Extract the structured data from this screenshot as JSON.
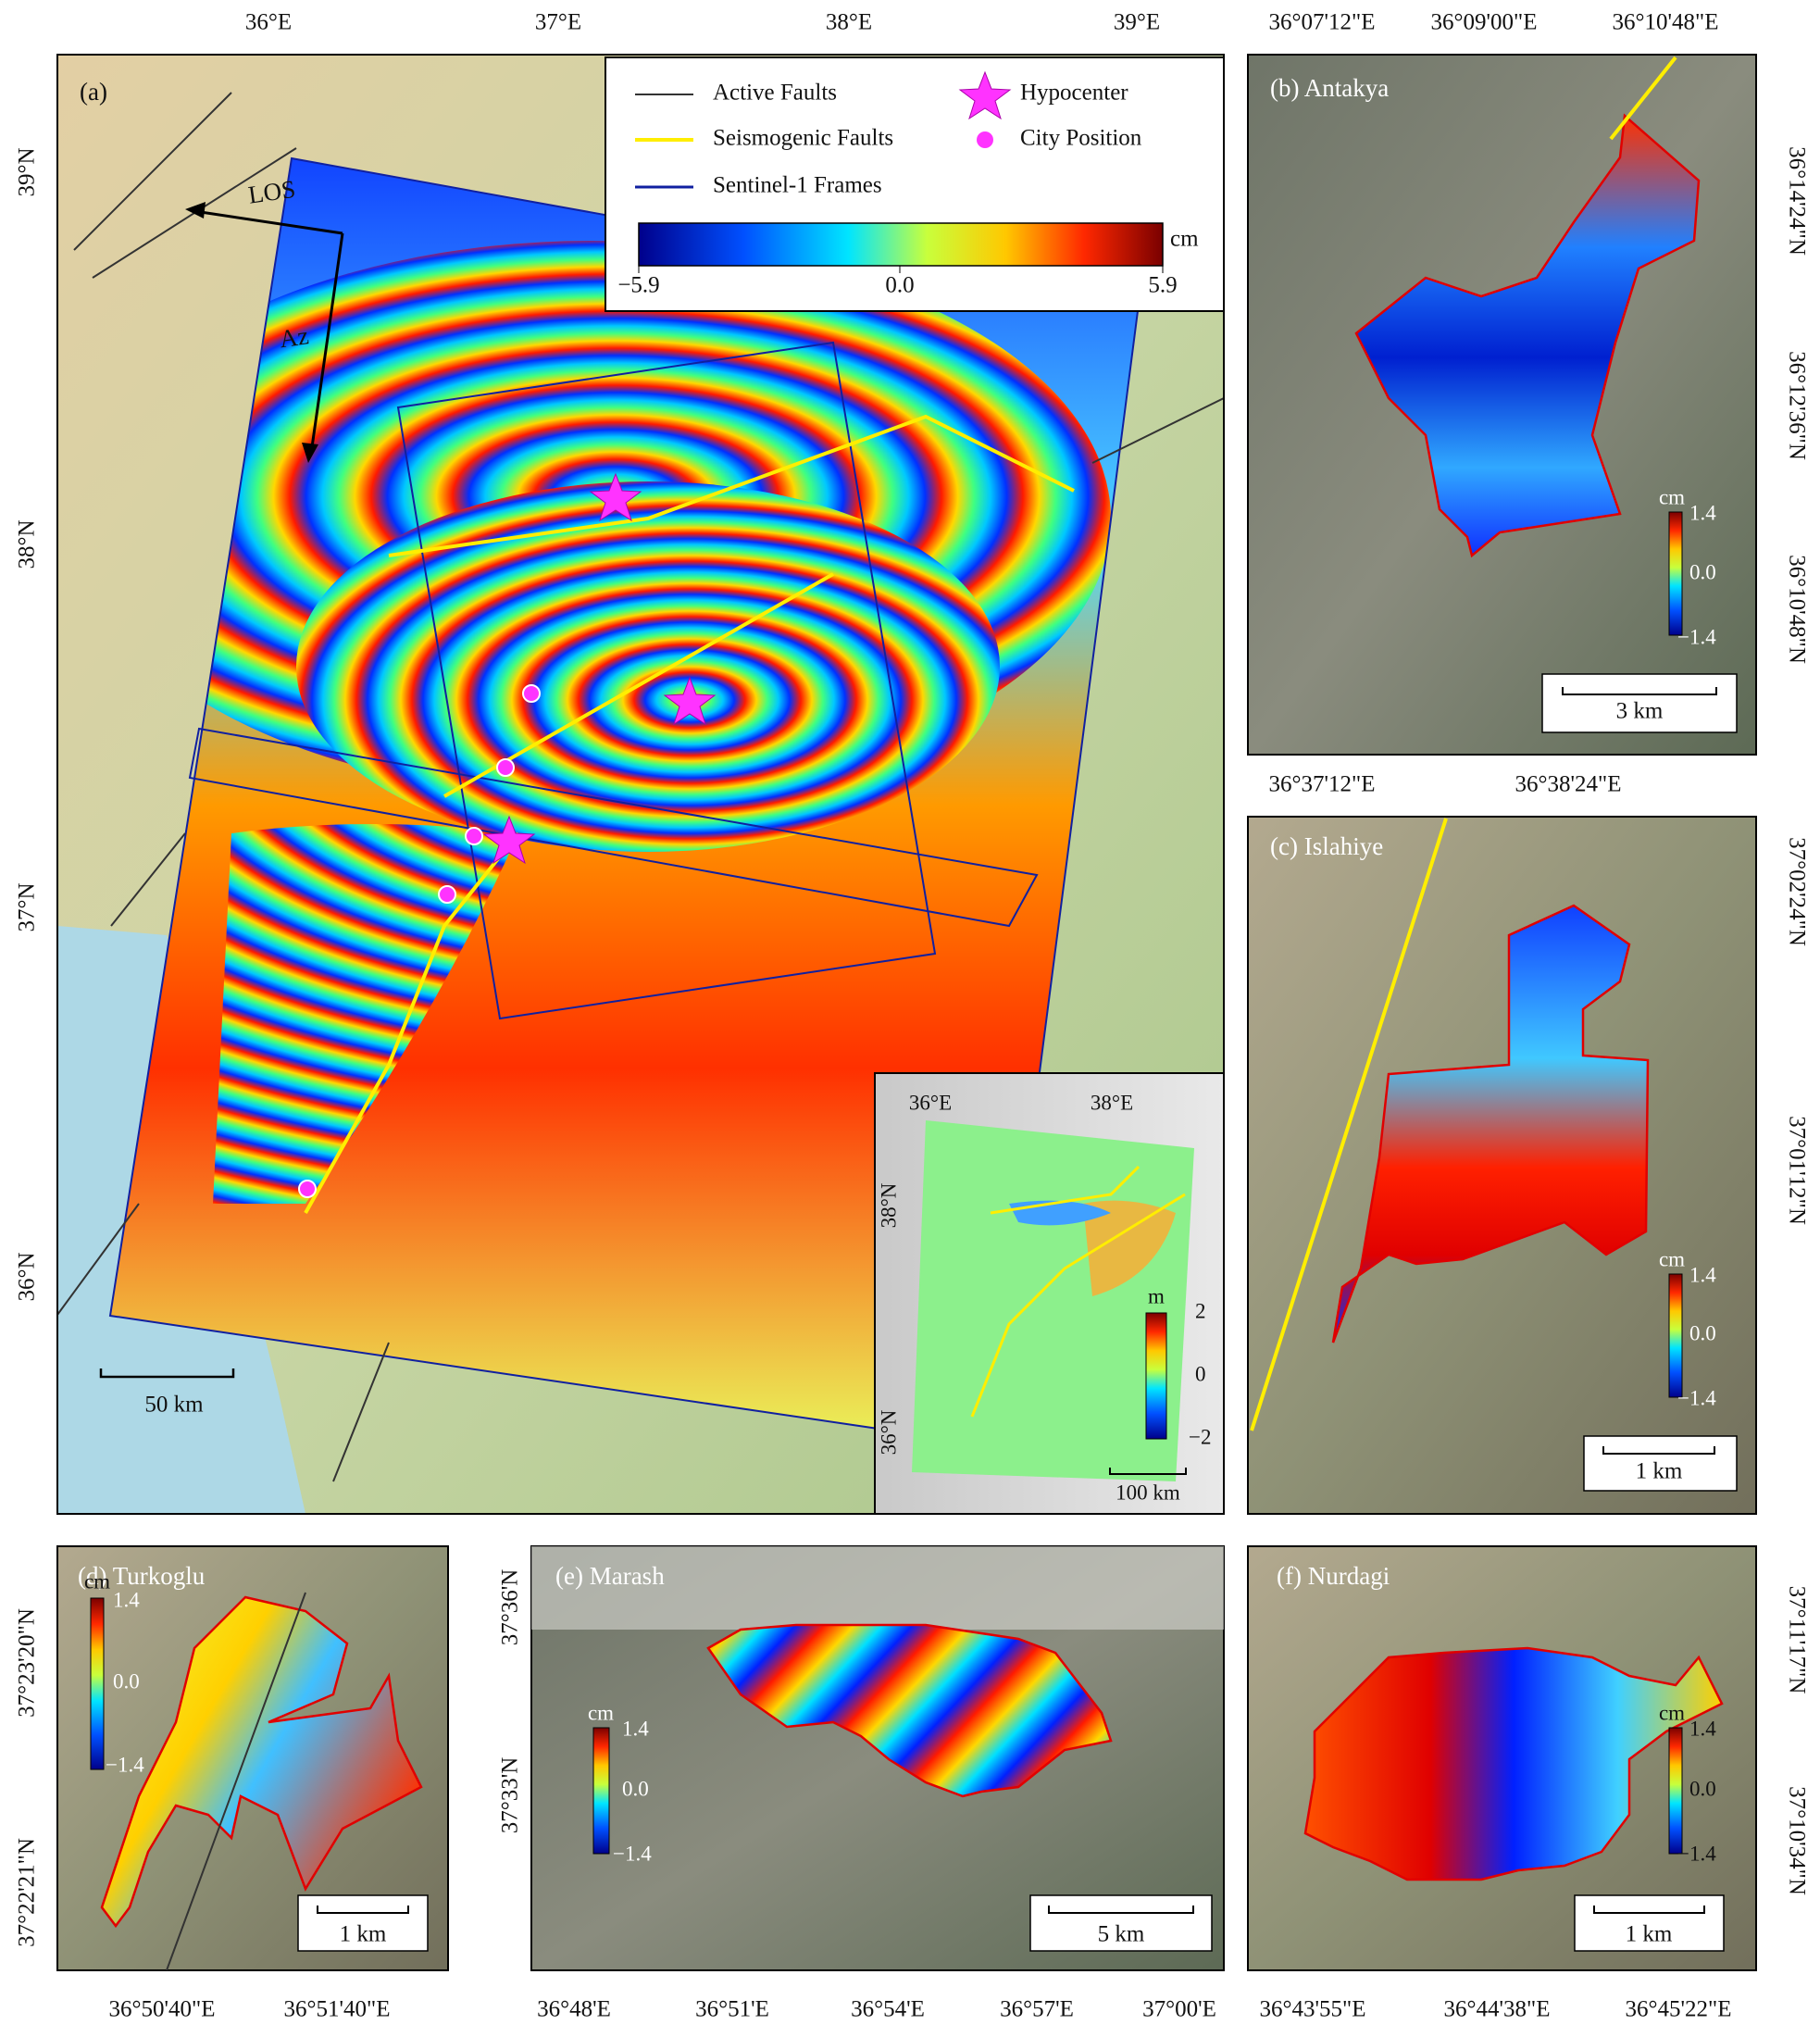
{
  "panel_a": {
    "label": "(a)",
    "lon_ticks": [
      "36°E",
      "37°E",
      "38°E",
      "39°E"
    ],
    "lat_ticks": [
      "39°N",
      "38°N",
      "37°N",
      "36°N"
    ],
    "legend": {
      "active_faults": "Active Faults",
      "seismogenic_faults": "Seismogenic Faults",
      "sentinel_frames": "Sentinel-1 Frames",
      "hypocenter": "Hypocenter",
      "city_position": "City Position"
    },
    "colorbar": {
      "unit": "cm",
      "ticks": [
        "−5.9",
        "0.0",
        "5.9"
      ]
    },
    "los": "LOS",
    "az": "Az",
    "scale_bar": "50 km",
    "inset": {
      "lon_ticks": [
        "36°E",
        "38°E"
      ],
      "lat_ticks": [
        "38°N",
        "36°N"
      ],
      "colorbar": {
        "unit": "m",
        "ticks": [
          "2",
          "0",
          "−2"
        ]
      },
      "scale_bar": "100 km"
    }
  },
  "panel_b": {
    "label": "(b) Antakya",
    "lon_ticks": [
      "36°07'12\"E",
      "36°09'00\"E",
      "36°10'48\"E"
    ],
    "lat_ticks": [
      "36°14'24\"N",
      "36°12'36\"N",
      "36°10'48\"N"
    ],
    "colorbar": {
      "unit": "cm",
      "ticks": [
        "1.4",
        "0.0",
        "−1.4"
      ]
    },
    "scale_bar": "3 km"
  },
  "panel_c": {
    "label": "(c) Islahiye",
    "lon_ticks": [
      "36°37'12\"E",
      "36°38'24\"E"
    ],
    "lat_ticks": [
      "37°02'24\"N",
      "37°01'12\"N"
    ],
    "colorbar": {
      "unit": "cm",
      "ticks": [
        "1.4",
        "0.0",
        "−1.4"
      ]
    },
    "scale_bar": "1 km"
  },
  "panel_d": {
    "label": "(d) Turkoglu",
    "lat_ticks": [
      "37°23'20\"N",
      "37°22'21\"N"
    ],
    "lon_ticks": [
      "36°50'40\"E",
      "36°51'40\"E"
    ],
    "colorbar": {
      "unit": "cm",
      "ticks": [
        "1.4",
        "0.0",
        "−1.4"
      ]
    },
    "scale_bar": "1 km"
  },
  "panel_e": {
    "label": "(e) Marash",
    "lat_ticks": [
      "37°36'N",
      "37°33'N"
    ],
    "lon_ticks": [
      "36°48'E",
      "36°51'E",
      "36°54'E",
      "36°57'E",
      "37°00'E"
    ],
    "colorbar": {
      "unit": "cm",
      "ticks": [
        "1.4",
        "0.0",
        "−1.4"
      ]
    },
    "scale_bar": "5 km"
  },
  "panel_f": {
    "label": "(f) Nurdagi",
    "lat_ticks": [
      "37°11'17\"N",
      "37°10'34\"N"
    ],
    "lon_ticks": [
      "36°43'55\"E",
      "36°44'38\"E",
      "36°45'22\"E"
    ],
    "colorbar": {
      "unit": "cm",
      "ticks": [
        "1.4",
        "0.0",
        "−1.4"
      ]
    },
    "scale_bar": "1 km"
  }
}
